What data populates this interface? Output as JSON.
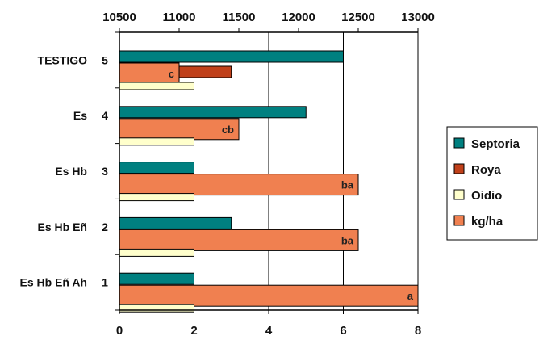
{
  "chart_data": {
    "type": "bar",
    "orientation": "horizontal",
    "categories": [
      "TESTIGO",
      "Es",
      "Es Hb",
      "Es Hb Eñ",
      "Es Hb Eñ Ah"
    ],
    "category_numbers": [
      "5",
      "4",
      "3",
      "2",
      "1"
    ],
    "x_bottom": {
      "range": [
        0,
        8
      ],
      "ticks": [
        "0",
        "2",
        "4",
        "6",
        "8"
      ]
    },
    "x_top": {
      "range": [
        10500,
        13000
      ],
      "ticks": [
        "10500",
        "11000",
        "11500",
        "12000",
        "12500",
        "13000"
      ]
    },
    "grid": "vertical",
    "legend_position": "right",
    "series": [
      {
        "name": "Septoria",
        "axis": "bottom",
        "color": "#008080",
        "values": [
          6,
          5,
          2,
          3,
          2
        ]
      },
      {
        "name": "Roya",
        "axis": "bottom",
        "color": "#C0401A",
        "values": [
          3,
          0,
          0,
          0,
          0
        ]
      },
      {
        "name": "Oidio",
        "axis": "bottom",
        "color": "#FFFFCC",
        "values": [
          2,
          2,
          2,
          2,
          2
        ]
      },
      {
        "name": "kg/ha",
        "axis": "top",
        "color": "#F08050",
        "values": [
          11000,
          11500,
          12500,
          12500,
          13000
        ],
        "labels": [
          "c",
          "cb",
          "ba",
          "ba",
          "a"
        ]
      }
    ]
  }
}
